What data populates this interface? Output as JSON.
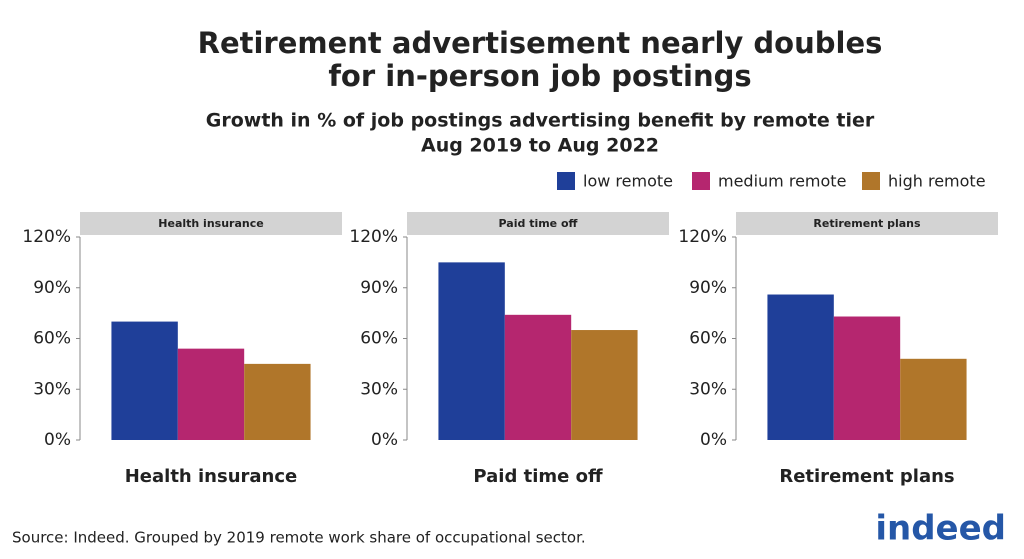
{
  "header": {
    "title": [
      "Retirement advertisement nearly doubles",
      "for in-person job postings"
    ],
    "subtitle": [
      "Growth in % of job postings advertising benefit by remote tier",
      "Aug 2019 to Aug 2022"
    ]
  },
  "chart_data": [
    {
      "type": "bar",
      "strip": "Health insurance",
      "xlabel": "Health insurance",
      "series": [
        {
          "name": "low remote",
          "color": "#1f3f99",
          "values": [
            70
          ]
        },
        {
          "name": "medium remote",
          "color": "#b5266f",
          "values": [
            54
          ]
        },
        {
          "name": "high remote",
          "color": "#b0762a",
          "values": [
            45
          ]
        }
      ],
      "ylim": [
        0,
        120
      ],
      "yticks": [
        {
          "value": 0,
          "label": "0%"
        },
        {
          "value": 30,
          "label": "30%"
        },
        {
          "value": 60,
          "label": "60%"
        },
        {
          "value": 90,
          "label": "90%"
        },
        {
          "value": 120,
          "label": "120%"
        }
      ]
    },
    {
      "type": "bar",
      "strip": "Paid time off",
      "xlabel": "Paid time off",
      "series": [
        {
          "name": "low remote",
          "color": "#1f3f99",
          "values": [
            105
          ]
        },
        {
          "name": "medium remote",
          "color": "#b5266f",
          "values": [
            74
          ]
        },
        {
          "name": "high remote",
          "color": "#b0762a",
          "values": [
            65
          ]
        }
      ],
      "ylim": [
        0,
        120
      ],
      "yticks": [
        {
          "value": 0,
          "label": "0%"
        },
        {
          "value": 30,
          "label": "30%"
        },
        {
          "value": 60,
          "label": "60%"
        },
        {
          "value": 90,
          "label": "90%"
        },
        {
          "value": 120,
          "label": "120%"
        }
      ]
    },
    {
      "type": "bar",
      "strip": "Retirement plans",
      "xlabel": "Retirement plans",
      "series": [
        {
          "name": "low remote",
          "color": "#1f3f99",
          "values": [
            86
          ]
        },
        {
          "name": "medium remote",
          "color": "#b5266f",
          "values": [
            73
          ]
        },
        {
          "name": "high remote",
          "color": "#b0762a",
          "values": [
            48
          ]
        }
      ],
      "ylim": [
        0,
        120
      ],
      "yticks": [
        {
          "value": 0,
          "label": "0%"
        },
        {
          "value": 30,
          "label": "30%"
        },
        {
          "value": 60,
          "label": "60%"
        },
        {
          "value": 90,
          "label": "90%"
        },
        {
          "value": 120,
          "label": "120%"
        }
      ]
    }
  ],
  "source": "Source: Indeed. Grouped by 2019 remote work share of occupational sector.",
  "logo": "indeed"
}
